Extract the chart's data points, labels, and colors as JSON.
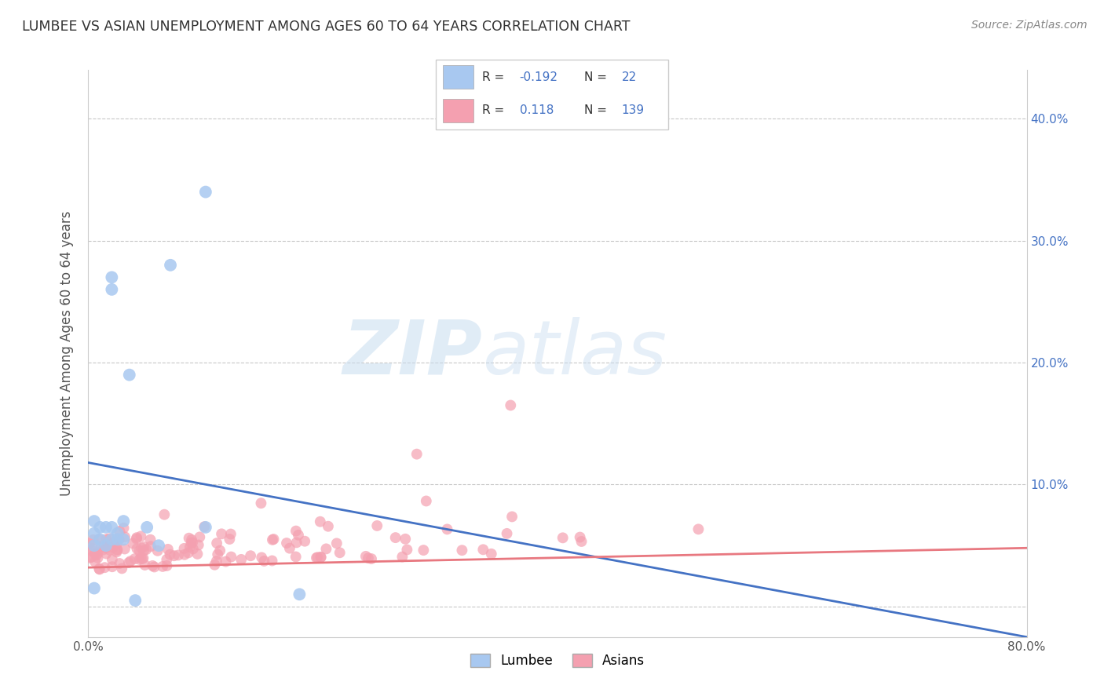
{
  "title": "LUMBEE VS ASIAN UNEMPLOYMENT AMONG AGES 60 TO 64 YEARS CORRELATION CHART",
  "source": "Source: ZipAtlas.com",
  "ylabel": "Unemployment Among Ages 60 to 64 years",
  "xlim": [
    0.0,
    0.8
  ],
  "ylim": [
    -0.025,
    0.44
  ],
  "lumbee_R": -0.192,
  "lumbee_N": 22,
  "asian_R": 0.118,
  "asian_N": 139,
  "lumbee_color": "#a8c8f0",
  "asian_color": "#f4a0b0",
  "lumbee_line_color": "#4472c4",
  "asian_line_color": "#e87880",
  "watermark_zip": "ZIP",
  "watermark_atlas": "atlas",
  "background_color": "#ffffff",
  "grid_color": "#c8c8c8",
  "right_tick_color": "#4472c4",
  "lumbee_x": [
    0.005,
    0.005,
    0.005,
    0.005,
    0.01,
    0.01,
    0.015,
    0.015,
    0.02,
    0.02,
    0.02,
    0.025,
    0.03,
    0.03,
    0.035,
    0.04,
    0.04,
    0.05,
    0.06,
    0.07,
    0.1,
    0.18
  ],
  "lumbee_y": [
    0.015,
    0.04,
    0.055,
    0.07,
    0.055,
    0.07,
    0.05,
    0.065,
    0.055,
    0.065,
    0.005,
    0.065,
    0.055,
    0.07,
    0.1,
    0.065,
    0.005,
    0.19,
    0.07,
    0.28,
    0.065,
    0.01
  ],
  "lumbee_line_x0": 0.0,
  "lumbee_line_x1": 0.8,
  "lumbee_line_y0": 0.118,
  "lumbee_line_y1": -0.025,
  "asian_line_x0": 0.0,
  "asian_line_x1": 0.8,
  "asian_line_y0": 0.032,
  "asian_line_y1": 0.048
}
